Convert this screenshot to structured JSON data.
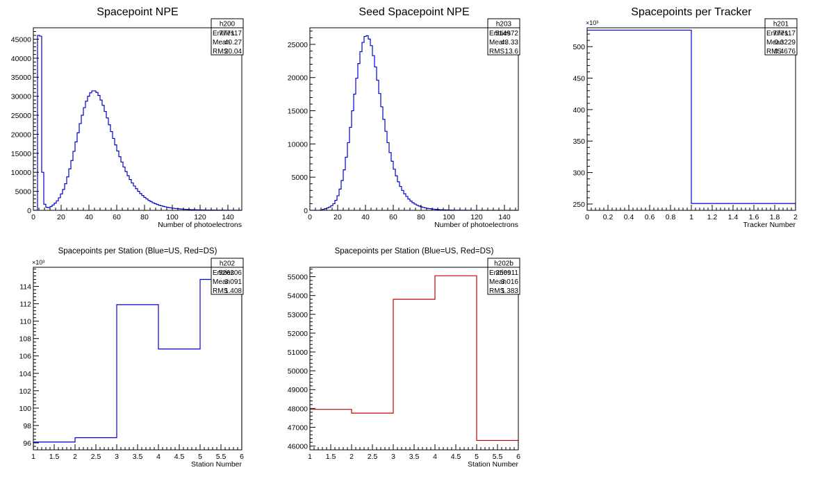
{
  "chart_data": [
    {
      "id": "h200",
      "type": "histogram",
      "title": "Spacepoint NPE",
      "xlabel": "Number of photoelectrons",
      "ylabel": "",
      "xlim": [
        0,
        150
      ],
      "ylim": [
        0,
        48000
      ],
      "x_ticks": [
        0,
        20,
        40,
        60,
        80,
        100,
        120,
        140
      ],
      "y_ticks": [
        0,
        5000,
        10000,
        15000,
        20000,
        25000,
        30000,
        35000,
        40000,
        45000
      ],
      "y_multiplier": "",
      "line_color": "#0000cc",
      "bin_width": 1.5,
      "values": [
        0,
        0,
        46000,
        45800,
        10000,
        1600,
        800,
        700,
        1000,
        1400,
        1900,
        2500,
        3300,
        4300,
        5500,
        7000,
        8800,
        10900,
        13100,
        15500,
        18000,
        20400,
        22800,
        25000,
        27000,
        28700,
        30000,
        30900,
        31400,
        31400,
        31000,
        30200,
        29000,
        27600,
        26000,
        24300,
        22500,
        20700,
        18900,
        17200,
        15600,
        14100,
        12700,
        11400,
        10200,
        9100,
        8100,
        7200,
        6400,
        5700,
        5000,
        4400,
        3900,
        3400,
        3000,
        2600,
        2300,
        2000,
        1750,
        1550,
        1350,
        1200,
        1050,
        920,
        800,
        700,
        620,
        540,
        470,
        410,
        360,
        320,
        280,
        250,
        220,
        195,
        175,
        155,
        140,
        125,
        110,
        100,
        90,
        82,
        75,
        68,
        62,
        56,
        51,
        47,
        43,
        39,
        36,
        33,
        30,
        28,
        26,
        24,
        22,
        20
      ],
      "stats": {
        "name": "h200",
        "entries": "777117",
        "mean": "40.27",
        "rms": "20.04"
      }
    },
    {
      "id": "h203",
      "type": "histogram",
      "title": "Seed Spacepoint NPE",
      "xlabel": "Number of photoelectrons",
      "ylabel": "",
      "xlim": [
        0,
        150
      ],
      "ylim": [
        0,
        27500
      ],
      "x_ticks": [
        0,
        20,
        40,
        60,
        80,
        100,
        120,
        140
      ],
      "y_ticks": [
        0,
        5000,
        10000,
        15000,
        20000,
        25000
      ],
      "y_multiplier": "",
      "line_color": "#0000cc",
      "bin_width": 1.5,
      "values": [
        0,
        0,
        0,
        0,
        0,
        50,
        150,
        250,
        350,
        500,
        700,
        1000,
        1500,
        2200,
        3200,
        4500,
        6100,
        8000,
        10200,
        12500,
        15000,
        17500,
        19900,
        22100,
        23900,
        25300,
        26200,
        26300,
        25800,
        24800,
        23300,
        21600,
        19600,
        17600,
        15600,
        13700,
        11900,
        10200,
        8700,
        7400,
        6200,
        5200,
        4300,
        3600,
        3000,
        2500,
        2100,
        1700,
        1400,
        1150,
        950,
        780,
        640,
        530,
        440,
        360,
        300,
        250,
        210,
        175,
        145,
        120,
        100,
        85,
        72,
        62,
        53,
        45,
        38,
        33,
        28,
        24,
        21,
        18,
        15,
        13,
        11,
        9,
        8,
        7,
        6,
        5,
        4,
        3,
        3,
        2,
        2,
        1,
        1,
        1,
        0,
        0,
        0,
        0,
        0,
        0,
        0,
        0,
        0,
        0
      ],
      "stats": {
        "name": "h203",
        "entries": "514972",
        "mean": "43.33",
        "rms": "13.6"
      }
    },
    {
      "id": "h201",
      "type": "histogram",
      "title": "Spacepoints per Tracker",
      "xlabel": "Tracker Number",
      "ylabel": "",
      "xlim": [
        0,
        2
      ],
      "ylim": [
        240,
        530
      ],
      "x_ticks": [
        0,
        0.2,
        0.4,
        0.6,
        0.8,
        1,
        1.2,
        1.4,
        1.6,
        1.8,
        2
      ],
      "y_ticks": [
        250,
        300,
        350,
        400,
        450,
        500
      ],
      "y_multiplier": "×10³",
      "line_color": "#0000cc",
      "edges": [
        0,
        1,
        2
      ],
      "values": [
        526.2,
        250.9
      ],
      "stats": {
        "name": "h201",
        "entries": "777117",
        "mean": "0.3229",
        "rms": "0.4676"
      }
    },
    {
      "id": "h202",
      "type": "histogram",
      "title": "Spacepoints per Station (Blue=US, Red=DS)",
      "xlabel": "Station Number",
      "ylabel": "",
      "xlim": [
        1,
        6
      ],
      "ylim": [
        95.2,
        116.2
      ],
      "x_ticks": [
        1,
        1.5,
        2,
        2.5,
        3,
        3.5,
        4,
        4.5,
        5,
        5.5,
        6
      ],
      "y_ticks": [
        96,
        98,
        100,
        102,
        104,
        106,
        108,
        110,
        112,
        114
      ],
      "y_multiplier": "×10³",
      "line_color": "#0000cc",
      "edges": [
        1,
        2,
        3,
        4,
        5,
        6
      ],
      "values": [
        96.1,
        96.6,
        111.9,
        106.8,
        114.8
      ],
      "stats": {
        "name": "h202",
        "entries": "526206",
        "mean": "3.091",
        "rms": "1.408"
      }
    },
    {
      "id": "h202b",
      "type": "histogram",
      "title": "Spacepoints per Station (Blue=US, Red=DS)",
      "xlabel": "Station Number",
      "ylabel": "",
      "xlim": [
        1,
        6
      ],
      "ylim": [
        45800,
        55500
      ],
      "x_ticks": [
        1,
        1.5,
        2,
        2.5,
        3,
        3.5,
        4,
        4.5,
        5,
        5.5,
        6
      ],
      "y_ticks": [
        46000,
        47000,
        48000,
        49000,
        50000,
        51000,
        52000,
        53000,
        54000,
        55000
      ],
      "y_multiplier": "",
      "line_color": "#cc0000",
      "edges": [
        1,
        2,
        3,
        4,
        5,
        6
      ],
      "values": [
        47950,
        47750,
        53800,
        55050,
        46300
      ],
      "stats": {
        "name": "h202b",
        "entries": "250911",
        "mean": "3.016",
        "rms": "1.383"
      }
    }
  ],
  "stat_labels": {
    "entries": "Entries",
    "mean": "Mean",
    "rms": "RMS"
  }
}
